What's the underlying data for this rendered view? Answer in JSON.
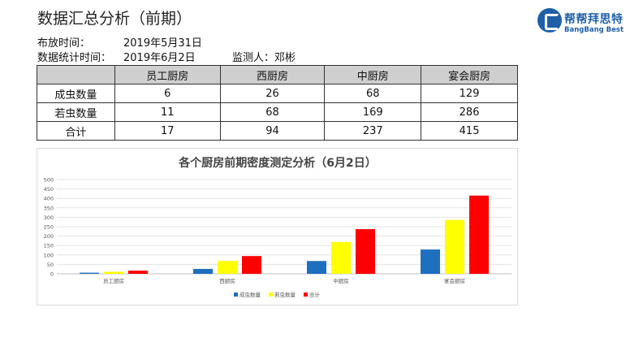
{
  "header": {
    "title": "数据汇总分析（前期）",
    "release_label": "布放时间：",
    "release_date": "2019年5月31日",
    "stats_label": "数据统计时间：",
    "stats_date": "2019年6月2日",
    "monitor_label": "监测人：",
    "monitor_name": "邓彬"
  },
  "logo": {
    "cn": "帮帮拜思特",
    "en": "BangBang Best"
  },
  "table": {
    "columns": [
      "",
      "员工厨房",
      "西厨房",
      "中厨房",
      "宴会厨房"
    ],
    "rows": [
      {
        "label": "成虫数量",
        "cells": [
          "6",
          "26",
          "68",
          "129"
        ]
      },
      {
        "label": "若虫数量",
        "cells": [
          "11",
          "68",
          "169",
          "286"
        ]
      },
      {
        "label": "合计",
        "cells": [
          "17",
          "94",
          "237",
          "415"
        ]
      }
    ]
  },
  "chart_data": {
    "type": "bar",
    "title": "各个厨房前期密度测定分析（6月2日）",
    "categories": [
      "员工厨房",
      "西厨房",
      "中厨房",
      "宴会厨房"
    ],
    "series": [
      {
        "name": "成虫数量",
        "values": [
          6,
          26,
          68,
          129
        ],
        "color": "#1f6fbf"
      },
      {
        "name": "若虫数量",
        "values": [
          11,
          68,
          169,
          286
        ],
        "color": "#ffff00"
      },
      {
        "name": "合计",
        "values": [
          17,
          94,
          237,
          415
        ],
        "color": "#ff0000"
      }
    ],
    "ylim": [
      0,
      500
    ],
    "yticks": [
      "0",
      "50",
      "100",
      "150",
      "200",
      "250",
      "300",
      "350",
      "400",
      "450",
      "500"
    ],
    "grid": true,
    "legend_position": "bottom"
  }
}
